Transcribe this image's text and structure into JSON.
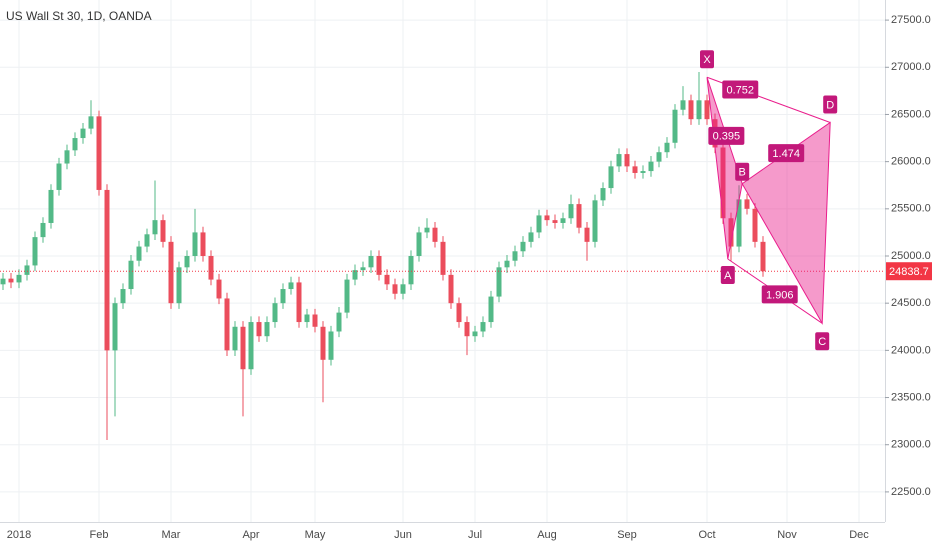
{
  "chart_data": {
    "type": "candlestick",
    "title": "US Wall St 30, 1D, OANDA",
    "categories": [
      null,
      null,
      "2018",
      null,
      null,
      null,
      null,
      null,
      null,
      null,
      null,
      null,
      "Feb",
      null,
      null,
      null,
      null,
      null,
      null,
      null,
      null,
      "Mar",
      null,
      null,
      null,
      null,
      null,
      null,
      null,
      null,
      null,
      "Apr",
      null,
      null,
      null,
      null,
      null,
      null,
      null,
      "May",
      null,
      null,
      null,
      null,
      null,
      null,
      null,
      null,
      null,
      null,
      "Jun",
      null,
      null,
      null,
      null,
      null,
      null,
      null,
      null,
      "Jul",
      null,
      null,
      null,
      null,
      null,
      null,
      null,
      null,
      "Aug",
      null,
      null,
      null,
      null,
      null,
      null,
      null,
      null,
      null,
      "Sep",
      null,
      null,
      null,
      null,
      null,
      null,
      null,
      null,
      null,
      "Oct",
      null,
      null,
      null,
      null,
      null,
      null,
      null,
      null,
      null,
      "Nov",
      null,
      null,
      null,
      null,
      null,
      null,
      null,
      null,
      "Dec",
      null,
      null,
      null
    ],
    "open": [
      24700,
      24760,
      24720,
      24800,
      24900,
      25200,
      25350,
      25700,
      25980,
      26120,
      26250,
      26350,
      26480,
      25700,
      24000,
      24500,
      24650,
      24950,
      25100,
      25230,
      25380,
      25150,
      24500,
      24880,
      25000,
      25250,
      25000,
      24750,
      24550,
      24000,
      24250,
      23800,
      24300,
      24150,
      24300,
      24500,
      24650,
      24720,
      24300,
      24380,
      24250,
      23900,
      24200,
      24400,
      24750,
      24850,
      24880,
      25000,
      24800,
      24700,
      24600,
      24700,
      25000,
      25250,
      25300,
      25150,
      24800,
      24500,
      24300,
      24150,
      24200,
      24300,
      24570,
      24880,
      24950,
      25050,
      25150,
      25250,
      25430,
      25380,
      25350,
      25400,
      25550,
      25300,
      25150,
      25590,
      25720,
      25950,
      26080,
      25950,
      25880,
      25900,
      26000,
      26100,
      26200,
      26550,
      26650,
      26450,
      26650,
      26450,
      26150,
      25400,
      25100,
      25600,
      25500,
      25150,
      null,
      null,
      null,
      null,
      null,
      null,
      null,
      null,
      null,
      null,
      null,
      null,
      null,
      null,
      null
    ],
    "high": [
      24820,
      24820,
      24860,
      24960,
      25260,
      25410,
      25760,
      26040,
      26180,
      26310,
      26410,
      26650,
      26540,
      25760,
      24560,
      24710,
      25010,
      25160,
      25290,
      25800,
      25440,
      25210,
      24940,
      25060,
      25500,
      25310,
      25060,
      24810,
      24610,
      24310,
      24310,
      24360,
      24360,
      24360,
      24560,
      24710,
      24780,
      24780,
      24440,
      24440,
      24310,
      24260,
      24460,
      24810,
      24910,
      24940,
      25060,
      25060,
      24860,
      24760,
      24760,
      25060,
      25310,
      25400,
      25360,
      25210,
      24860,
      24560,
      24360,
      24260,
      24360,
      24630,
      24940,
      25010,
      25110,
      25210,
      25310,
      25490,
      25490,
      25440,
      25460,
      25650,
      25610,
      25360,
      25650,
      25780,
      26010,
      26140,
      26140,
      26010,
      25960,
      26060,
      26160,
      26260,
      26610,
      26800,
      26710,
      26950,
      26710,
      26510,
      26210,
      25460,
      25750,
      25660,
      25560,
      25210,
      null,
      null,
      null,
      null,
      null,
      null,
      null,
      null,
      null,
      null,
      null,
      null,
      null,
      null,
      null
    ],
    "low": [
      24640,
      24660,
      24660,
      24740,
      24840,
      25140,
      25290,
      25640,
      25920,
      26060,
      26190,
      26290,
      25640,
      23050,
      23300,
      24440,
      24590,
      24890,
      25040,
      25170,
      25090,
      24440,
      24440,
      24820,
      24940,
      24940,
      24690,
      24490,
      23940,
      23940,
      23300,
      23740,
      24090,
      24090,
      24240,
      24440,
      24590,
      24240,
      24240,
      24190,
      23450,
      23840,
      24140,
      24340,
      24690,
      24790,
      24820,
      24740,
      24640,
      24540,
      24540,
      24640,
      24940,
      25190,
      25090,
      24740,
      24440,
      24240,
      23950,
      24090,
      24140,
      24240,
      24510,
      24820,
      24890,
      24990,
      25090,
      25190,
      25320,
      25290,
      25290,
      25340,
      25240,
      24950,
      25090,
      25530,
      25660,
      25890,
      25890,
      25820,
      25820,
      25840,
      25940,
      26040,
      26140,
      26490,
      26390,
      26390,
      26390,
      26090,
      25340,
      24950,
      25040,
      25440,
      25090,
      24780,
      null,
      null,
      null,
      null,
      null,
      null,
      null,
      null,
      null,
      null,
      null,
      null,
      null,
      null,
      null
    ],
    "close": [
      24760,
      24720,
      24800,
      24900,
      25200,
      25350,
      25700,
      25980,
      26120,
      26250,
      26350,
      26480,
      25700,
      24000,
      24500,
      24650,
      24950,
      25100,
      25230,
      25380,
      25150,
      24500,
      24880,
      25000,
      25250,
      25000,
      24750,
      24550,
      24000,
      24250,
      23800,
      24300,
      24150,
      24300,
      24500,
      24650,
      24720,
      24300,
      24380,
      24250,
      23900,
      24200,
      24400,
      24750,
      24850,
      24880,
      25000,
      24800,
      24700,
      24600,
      24700,
      25000,
      25250,
      25300,
      25150,
      24800,
      24500,
      24300,
      24150,
      24200,
      24300,
      24570,
      24880,
      24950,
      25050,
      25150,
      25250,
      25430,
      25380,
      25350,
      25400,
      25550,
      25300,
      25150,
      25590,
      25720,
      25950,
      26080,
      25950,
      25880,
      25900,
      26000,
      26100,
      26200,
      26550,
      26650,
      26450,
      26650,
      26450,
      26150,
      25400,
      25100,
      25600,
      25500,
      25150,
      24838.7,
      null,
      null,
      null,
      null,
      null,
      null,
      null,
      null,
      null,
      null,
      null,
      null,
      null,
      null,
      null
    ],
    "up_color": "#53b987",
    "down_color": "#eb4d5c",
    "last_price": 24838.7,
    "last_price_color": "#f23645",
    "ylim": [
      22181,
      27713
    ],
    "yticks": [
      {
        "value": 22500,
        "label": "22500.0"
      },
      {
        "value": 23000,
        "label": "23000.0"
      },
      {
        "value": 23500,
        "label": "23500.0"
      },
      {
        "value": 24000,
        "label": "24000.0"
      },
      {
        "value": 24500,
        "label": "24500.0"
      },
      {
        "value": 25000,
        "label": "25000.0"
      },
      {
        "value": 25500,
        "label": "25500.0"
      },
      {
        "value": 26000,
        "label": "26000.0"
      },
      {
        "value": 26500,
        "label": "26500.0"
      },
      {
        "value": 27000,
        "label": "27000.0"
      },
      {
        "value": 27500,
        "label": "27500.0"
      }
    ],
    "grid": true,
    "pattern": {
      "color": "#e91e8c",
      "points": [
        {
          "label": "X",
          "x": 88,
          "y": 26894
        },
        {
          "label": "A",
          "x": 90.6,
          "y": 24968
        },
        {
          "label": "B",
          "x": 92.4,
          "y": 25766
        },
        {
          "label": "C",
          "x": 102.4,
          "y": 24287
        },
        {
          "label": "D",
          "x": 103.4,
          "y": 26415
        }
      ],
      "ratios": [
        0.752,
        0.395,
        1.474,
        1.906
      ]
    }
  }
}
